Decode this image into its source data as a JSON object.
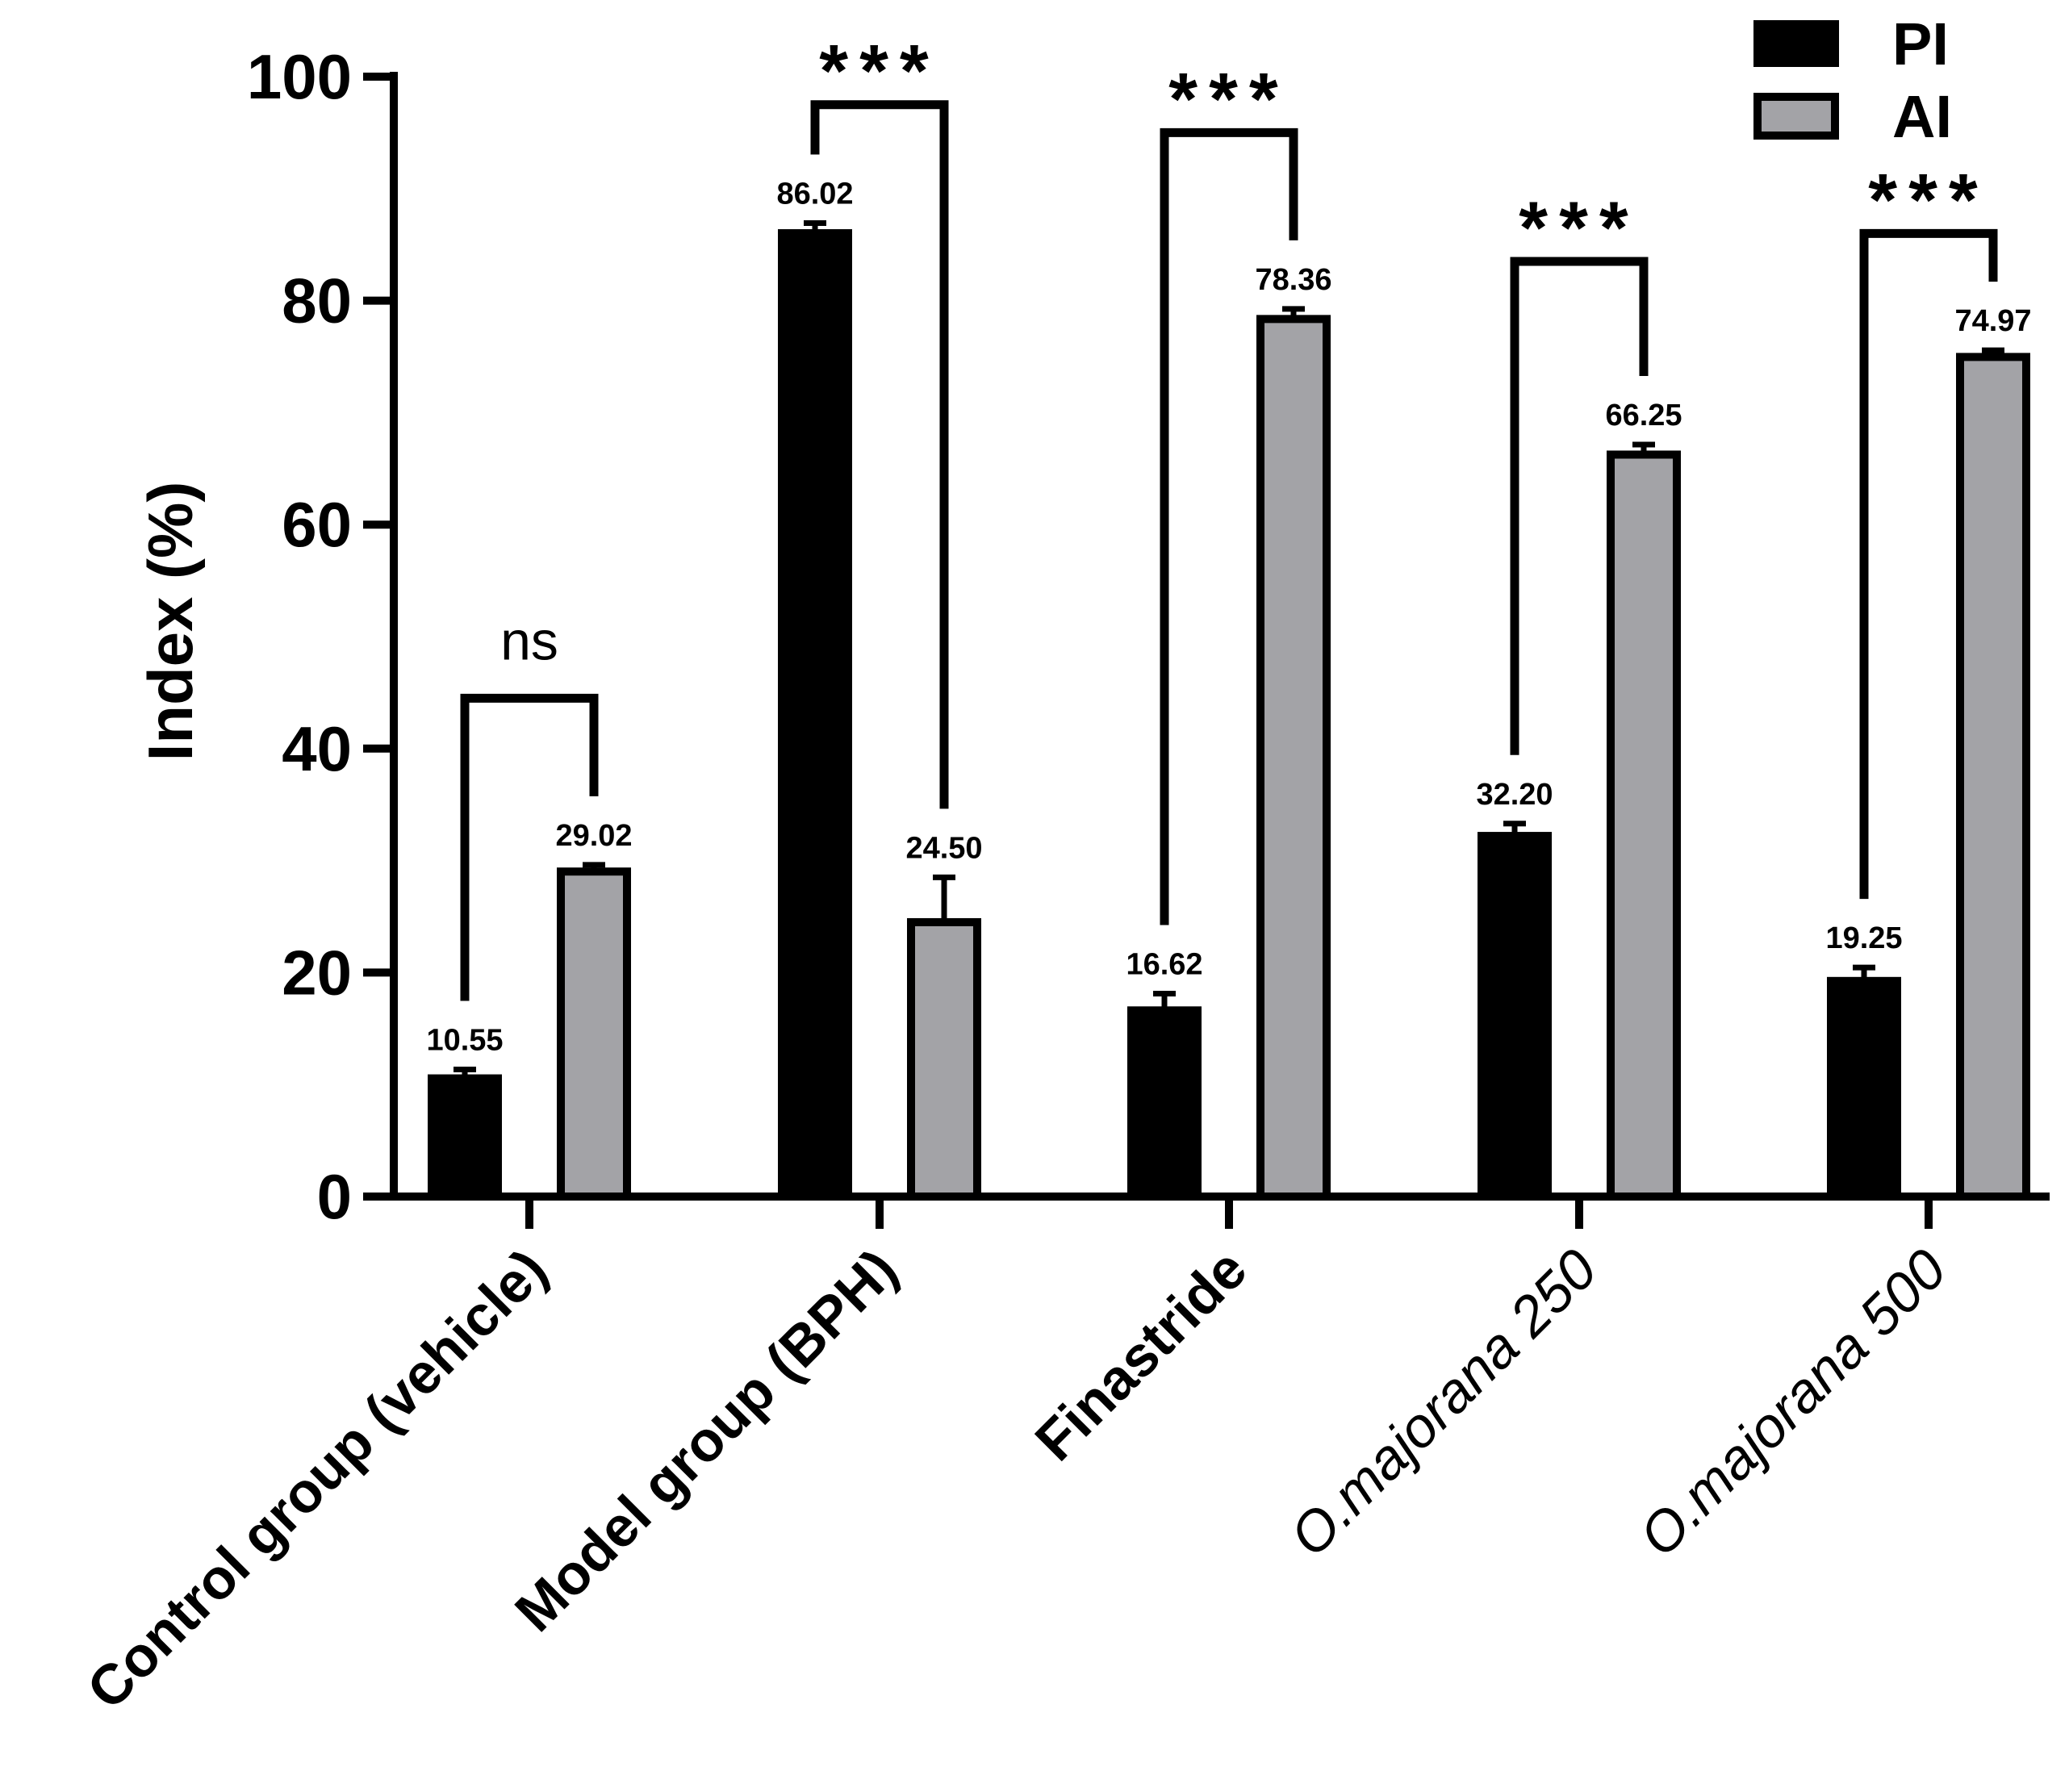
{
  "chart_data": {
    "type": "bar",
    "title": "",
    "xlabel": "",
    "ylabel": "Index (%)",
    "ylim": [
      0,
      100
    ],
    "yticks": [
      0,
      20,
      40,
      60,
      80,
      100
    ],
    "categories": [
      "Control group (vehicle)",
      "Model group (BPH)",
      "Finastride",
      "O.majorana 250",
      "O.majorana 500"
    ],
    "series": [
      {
        "name": "PI",
        "color": "#000000",
        "values": [
          10.55,
          86.02,
          16.62,
          32.2,
          19.25
        ],
        "value_labels": [
          "10.55",
          "86.02",
          "16.62",
          "32.20",
          "19.25"
        ],
        "errors": [
          0.8,
          0.9,
          1.5,
          1.1,
          1.2
        ]
      },
      {
        "name": "AI",
        "color": "#a3a3a7",
        "values": [
          29.02,
          24.5,
          78.36,
          66.25,
          74.97
        ],
        "value_labels": [
          "29.02",
          "24.50",
          "78.36",
          "66.25",
          "74.97"
        ],
        "errors": [
          0.6,
          4.0,
          0.9,
          0.9,
          0.6
        ]
      }
    ],
    "significance": [
      {
        "label": "ns",
        "bracket_top": 44.5
      },
      {
        "label": "***",
        "bracket_top": 97.5
      },
      {
        "label": "***",
        "bracket_top": 95.0
      },
      {
        "label": "***",
        "bracket_top": 83.5
      },
      {
        "label": "***",
        "bracket_top": 86.0
      }
    ],
    "legend": {
      "position": "top-right",
      "entries": [
        "PI",
        "AI"
      ]
    }
  }
}
